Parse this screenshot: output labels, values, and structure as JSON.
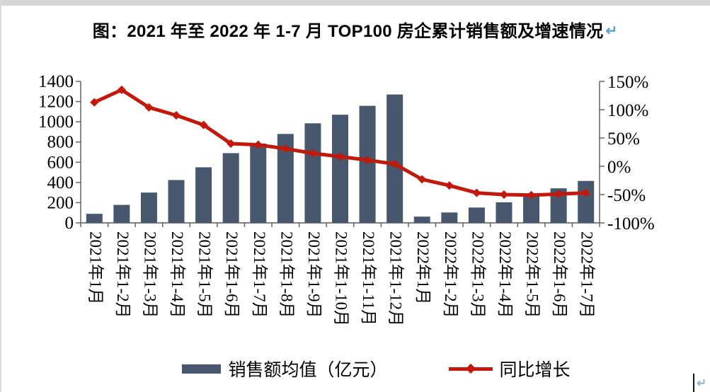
{
  "page": {
    "title": "图：2021 年至 2022 年 1-7 月 TOP100 房企累计销售额及增速情况",
    "title_return_mark": "↵",
    "corner_return_mark": "↵"
  },
  "chart_data": {
    "type": "combo-bar-line",
    "title": "图：2021 年至 2022 年 1-7 月 TOP100 房企累计销售额及增速情况",
    "categories": [
      "2021年1月",
      "2021年1-2月",
      "2021年1-3月",
      "2021年1-4月",
      "2021年1-5月",
      "2021年1-6月",
      "2021年1-7月",
      "2021年1-8月",
      "2021年1-9月",
      "2021年1-10月",
      "2021年1-11月",
      "2021年1-12月",
      "2022年1月",
      "2022年1-2月",
      "2022年1-3月",
      "2022年1-4月",
      "2022年1-5月",
      "2022年1-6月",
      "2022年1-7月"
    ],
    "series": [
      {
        "name": "销售额均值（亿元）",
        "type": "bar",
        "axis": "left",
        "color": "#47586E",
        "values": [
          90,
          178,
          300,
          424,
          550,
          690,
          785,
          880,
          985,
          1070,
          1158,
          1270,
          62,
          103,
          152,
          204,
          265,
          342,
          415
        ]
      },
      {
        "name": "同比增长",
        "type": "line",
        "axis": "right",
        "color": "#C2190C",
        "values": [
          113,
          135,
          104,
          90,
          73,
          40,
          38,
          31,
          23,
          17,
          11,
          4,
          -23,
          -34,
          -47,
          -50,
          -51,
          -49,
          -47
        ]
      }
    ],
    "left_axis": {
      "min": 0,
      "max": 1400,
      "step": 200,
      "tick_labels": [
        "0",
        "200",
        "400",
        "600",
        "800",
        "1000",
        "1200",
        "1400"
      ]
    },
    "right_axis": {
      "min": -100,
      "max": 150,
      "step": 50,
      "unit": "%",
      "tick_labels": [
        "150%",
        "100%",
        "50%",
        "0%",
        "-50%",
        "-100%"
      ]
    },
    "grid": false,
    "legend_position": "bottom"
  }
}
